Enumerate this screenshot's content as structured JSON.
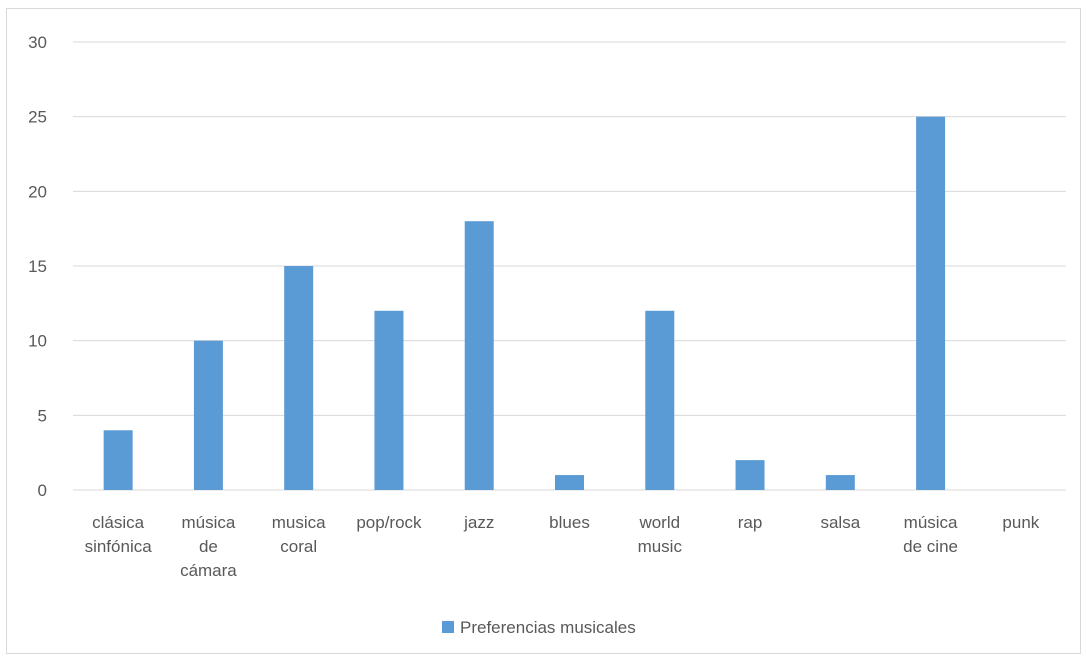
{
  "chart_data": {
    "type": "bar",
    "categories": [
      "clásica sinfónica",
      "música de cámara",
      "musica coral",
      "pop/rock",
      "jazz",
      "blues",
      "world music",
      "rap",
      "salsa",
      "música de cine",
      "punk"
    ],
    "category_lines": [
      [
        "clásica",
        "sinfónica"
      ],
      [
        "música",
        "de",
        "cámara"
      ],
      [
        "musica",
        "coral"
      ],
      [
        "pop/rock"
      ],
      [
        "jazz"
      ],
      [
        "blues"
      ],
      [
        "world",
        "music"
      ],
      [
        "rap"
      ],
      [
        "salsa"
      ],
      [
        "música",
        "de cine"
      ],
      [
        "punk"
      ]
    ],
    "series": [
      {
        "name": "Preferencias musicales",
        "values": [
          4,
          10,
          15,
          12,
          18,
          1,
          12,
          2,
          1,
          25,
          0
        ],
        "color": "#5b9bd5"
      }
    ],
    "title": "",
    "xlabel": "",
    "ylabel": "",
    "ylim": [
      0,
      30
    ],
    "yticks": [
      0,
      5,
      10,
      15,
      20,
      25,
      30
    ],
    "grid": true,
    "legend": "bottom"
  }
}
